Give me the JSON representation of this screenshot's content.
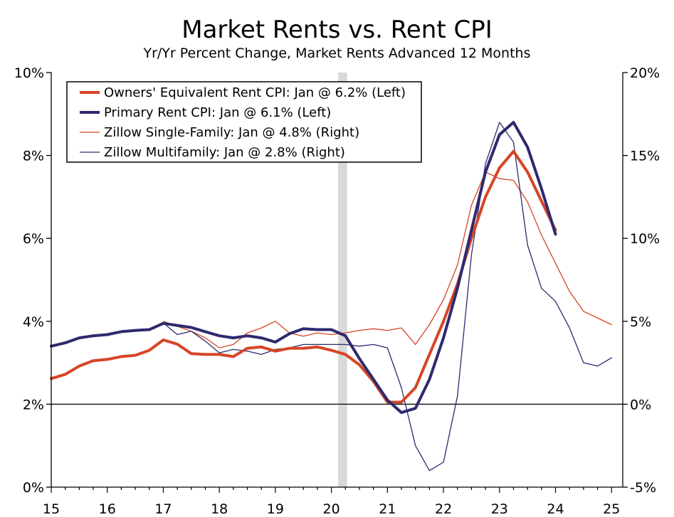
{
  "chart_data": {
    "type": "line",
    "title": "Market Rents vs. Rent CPI",
    "subtitle": "Yr/Yr Percent Change, Market Rents Advanced 12 Months",
    "x_ticks": [
      "15",
      "16",
      "17",
      "18",
      "19",
      "20",
      "21",
      "22",
      "23",
      "24",
      "25"
    ],
    "x_range": [
      2015,
      2025.2
    ],
    "y_left": {
      "range": [
        0,
        10
      ],
      "ticks": [
        "0%",
        "2%",
        "4%",
        "6%",
        "8%",
        "10%"
      ]
    },
    "y_right": {
      "range": [
        -5,
        20
      ],
      "ticks": [
        "-5%",
        "0%",
        "5%",
        "10%",
        "15%",
        "20%"
      ]
    },
    "reference_line": {
      "axis": "left",
      "value": 2
    },
    "recession_band": [
      2020.12,
      2020.28
    ],
    "colors": {
      "red": "#d64526",
      "navy": "#2e2a6e",
      "band": "#d9d9d9"
    },
    "series": [
      {
        "name": "Owners' Equivalent Rent CPI: Jan @ 6.2% (Left)",
        "axis": "left",
        "color": "#d64526",
        "width": 4,
        "points": [
          [
            2015.0,
            2.62
          ],
          [
            2015.25,
            2.72
          ],
          [
            2015.5,
            2.92
          ],
          [
            2015.75,
            3.05
          ],
          [
            2016.0,
            3.08
          ],
          [
            2016.25,
            3.15
          ],
          [
            2016.5,
            3.18
          ],
          [
            2016.75,
            3.3
          ],
          [
            2017.0,
            3.55
          ],
          [
            2017.25,
            3.45
          ],
          [
            2017.5,
            3.22
          ],
          [
            2017.75,
            3.2
          ],
          [
            2018.0,
            3.2
          ],
          [
            2018.25,
            3.15
          ],
          [
            2018.5,
            3.35
          ],
          [
            2018.75,
            3.38
          ],
          [
            2019.0,
            3.28
          ],
          [
            2019.25,
            3.35
          ],
          [
            2019.5,
            3.35
          ],
          [
            2019.75,
            3.38
          ],
          [
            2020.0,
            3.3
          ],
          [
            2020.25,
            3.2
          ],
          [
            2020.5,
            2.95
          ],
          [
            2020.75,
            2.55
          ],
          [
            2021.0,
            2.05
          ],
          [
            2021.25,
            2.05
          ],
          [
            2021.5,
            2.4
          ],
          [
            2021.75,
            3.2
          ],
          [
            2022.0,
            4.0
          ],
          [
            2022.25,
            4.9
          ],
          [
            2022.5,
            6.0
          ],
          [
            2022.75,
            7.0
          ],
          [
            2023.0,
            7.7
          ],
          [
            2023.25,
            8.1
          ],
          [
            2023.5,
            7.6
          ],
          [
            2023.75,
            6.9
          ],
          [
            2024.0,
            6.2
          ]
        ]
      },
      {
        "name": "Primary Rent CPI: Jan @ 6.1% (Left)",
        "axis": "left",
        "color": "#2e2a6e",
        "width": 4,
        "points": [
          [
            2015.0,
            3.4
          ],
          [
            2015.25,
            3.48
          ],
          [
            2015.5,
            3.6
          ],
          [
            2015.75,
            3.65
          ],
          [
            2016.0,
            3.68
          ],
          [
            2016.25,
            3.75
          ],
          [
            2016.5,
            3.78
          ],
          [
            2016.75,
            3.8
          ],
          [
            2017.0,
            3.95
          ],
          [
            2017.25,
            3.9
          ],
          [
            2017.5,
            3.85
          ],
          [
            2017.75,
            3.75
          ],
          [
            2018.0,
            3.65
          ],
          [
            2018.25,
            3.6
          ],
          [
            2018.5,
            3.65
          ],
          [
            2018.75,
            3.6
          ],
          [
            2019.0,
            3.5
          ],
          [
            2019.25,
            3.7
          ],
          [
            2019.5,
            3.82
          ],
          [
            2019.75,
            3.8
          ],
          [
            2020.0,
            3.8
          ],
          [
            2020.25,
            3.65
          ],
          [
            2020.5,
            3.1
          ],
          [
            2020.75,
            2.6
          ],
          [
            2021.0,
            2.1
          ],
          [
            2021.25,
            1.8
          ],
          [
            2021.5,
            1.9
          ],
          [
            2021.75,
            2.6
          ],
          [
            2022.0,
            3.6
          ],
          [
            2022.25,
            4.8
          ],
          [
            2022.5,
            6.2
          ],
          [
            2022.75,
            7.6
          ],
          [
            2023.0,
            8.5
          ],
          [
            2023.25,
            8.8
          ],
          [
            2023.5,
            8.2
          ],
          [
            2023.75,
            7.2
          ],
          [
            2024.0,
            6.1
          ]
        ]
      },
      {
        "name": "Zillow Single-Family: Jan @ 4.8% (Right)",
        "axis": "right",
        "color": "#d64526",
        "width": 1.3,
        "points": [
          [
            2017.0,
            5.0
          ],
          [
            2017.25,
            4.7
          ],
          [
            2017.5,
            4.4
          ],
          [
            2017.75,
            4.0
          ],
          [
            2018.0,
            3.4
          ],
          [
            2018.25,
            3.6
          ],
          [
            2018.5,
            4.3
          ],
          [
            2018.75,
            4.6
          ],
          [
            2019.0,
            5.0
          ],
          [
            2019.25,
            4.3
          ],
          [
            2019.5,
            4.1
          ],
          [
            2019.75,
            4.3
          ],
          [
            2020.0,
            4.2
          ],
          [
            2020.25,
            4.3
          ],
          [
            2020.5,
            4.45
          ],
          [
            2020.75,
            4.55
          ],
          [
            2021.0,
            4.45
          ],
          [
            2021.25,
            4.6
          ],
          [
            2021.5,
            3.6
          ],
          [
            2021.75,
            4.8
          ],
          [
            2022.0,
            6.3
          ],
          [
            2022.25,
            8.4
          ],
          [
            2022.5,
            12.0
          ],
          [
            2022.75,
            14.0
          ],
          [
            2023.0,
            13.6
          ],
          [
            2023.25,
            13.5
          ],
          [
            2023.5,
            12.2
          ],
          [
            2023.75,
            10.2
          ],
          [
            2024.0,
            8.5
          ],
          [
            2024.25,
            6.8
          ],
          [
            2024.5,
            5.6
          ],
          [
            2024.75,
            5.2
          ],
          [
            2025.0,
            4.8
          ]
        ]
      },
      {
        "name": "Zillow Multifamily: Jan @ 2.8% (Right)",
        "axis": "right",
        "color": "#2e2a6e",
        "width": 1.3,
        "points": [
          [
            2017.0,
            4.9
          ],
          [
            2017.25,
            4.2
          ],
          [
            2017.5,
            4.4
          ],
          [
            2017.75,
            3.8
          ],
          [
            2018.0,
            3.1
          ],
          [
            2018.25,
            3.3
          ],
          [
            2018.5,
            3.2
          ],
          [
            2018.75,
            3.0
          ],
          [
            2019.0,
            3.3
          ],
          [
            2019.25,
            3.4
          ],
          [
            2019.5,
            3.6
          ],
          [
            2019.75,
            3.6
          ],
          [
            2020.0,
            3.6
          ],
          [
            2020.25,
            3.6
          ],
          [
            2020.5,
            3.5
          ],
          [
            2020.75,
            3.6
          ],
          [
            2021.0,
            3.4
          ],
          [
            2021.25,
            1.0
          ],
          [
            2021.5,
            -2.5
          ],
          [
            2021.75,
            -4.0
          ],
          [
            2022.0,
            -3.5
          ],
          [
            2022.25,
            0.5
          ],
          [
            2022.5,
            9.0
          ],
          [
            2022.75,
            14.5
          ],
          [
            2023.0,
            17.0
          ],
          [
            2023.25,
            15.8
          ],
          [
            2023.5,
            9.6
          ],
          [
            2023.75,
            7.0
          ],
          [
            2024.0,
            6.2
          ],
          [
            2024.25,
            4.6
          ],
          [
            2024.5,
            2.5
          ],
          [
            2024.75,
            2.3
          ],
          [
            2025.0,
            2.8
          ]
        ]
      }
    ]
  }
}
